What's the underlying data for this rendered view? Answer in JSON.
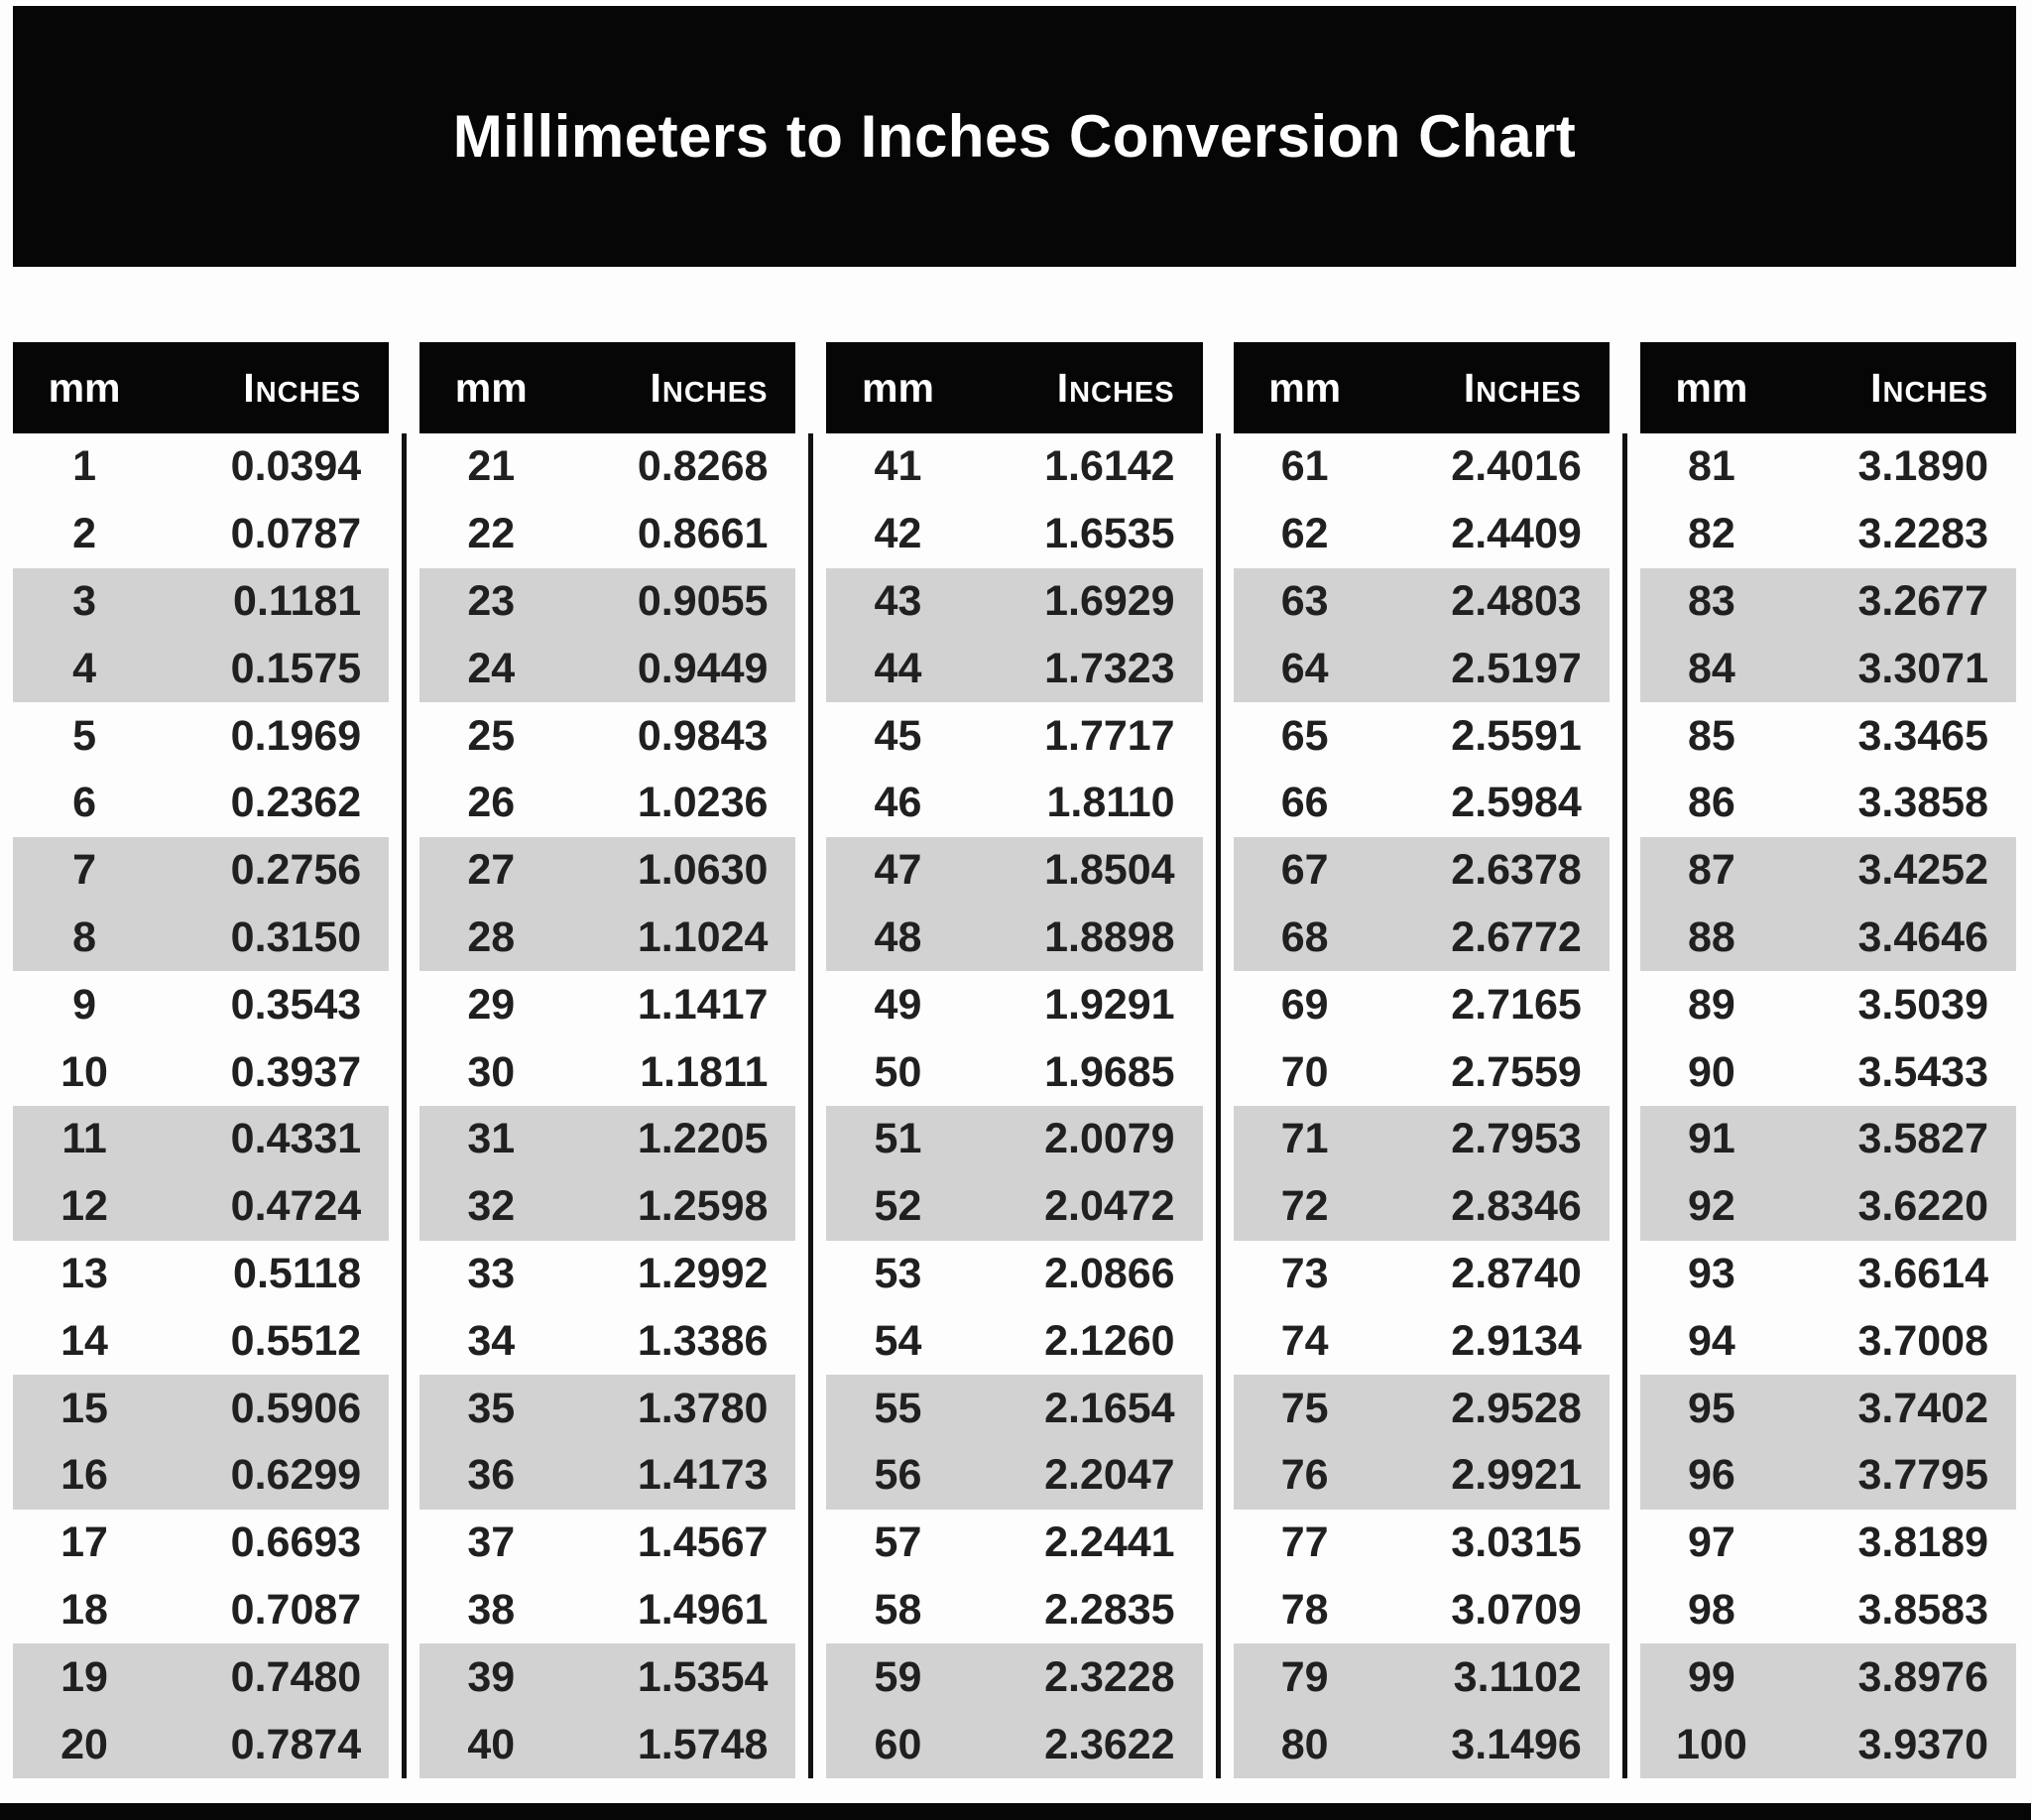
{
  "title": "Millimeters to Inches Conversion Chart",
  "col_headers": {
    "mm": "mm",
    "inches": "Inches"
  },
  "colors": {
    "ink": "#060606",
    "row_alt": "#d2d2d2",
    "divider": "#111111",
    "page_bg": "#fdfdfd",
    "header_text": "#ffffff",
    "body_text": "#202020"
  },
  "tables": [
    {
      "mm": [
        "1",
        "2",
        "3",
        "4",
        "5",
        "6",
        "7",
        "8",
        "9",
        "10",
        "11",
        "12",
        "13",
        "14",
        "15",
        "16",
        "17",
        "18",
        "19",
        "20"
      ],
      "in": [
        "0.0394",
        "0.0787",
        "0.1181",
        "0.1575",
        "0.1969",
        "0.2362",
        "0.2756",
        "0.3150",
        "0.3543",
        "0.3937",
        "0.4331",
        "0.4724",
        "0.5118",
        "0.5512",
        "0.5906",
        "0.6299",
        "0.6693",
        "0.7087",
        "0.7480",
        "0.7874"
      ]
    },
    {
      "mm": [
        "21",
        "22",
        "23",
        "24",
        "25",
        "26",
        "27",
        "28",
        "29",
        "30",
        "31",
        "32",
        "33",
        "34",
        "35",
        "36",
        "37",
        "38",
        "39",
        "40"
      ],
      "in": [
        "0.8268",
        "0.8661",
        "0.9055",
        "0.9449",
        "0.9843",
        "1.0236",
        "1.0630",
        "1.1024",
        "1.1417",
        "1.1811",
        "1.2205",
        "1.2598",
        "1.2992",
        "1.3386",
        "1.3780",
        "1.4173",
        "1.4567",
        "1.4961",
        "1.5354",
        "1.5748"
      ]
    },
    {
      "mm": [
        "41",
        "42",
        "43",
        "44",
        "45",
        "46",
        "47",
        "48",
        "49",
        "50",
        "51",
        "52",
        "53",
        "54",
        "55",
        "56",
        "57",
        "58",
        "59",
        "60"
      ],
      "in": [
        "1.6142",
        "1.6535",
        "1.6929",
        "1.7323",
        "1.7717",
        "1.8110",
        "1.8504",
        "1.8898",
        "1.9291",
        "1.9685",
        "2.0079",
        "2.0472",
        "2.0866",
        "2.1260",
        "2.1654",
        "2.2047",
        "2.2441",
        "2.2835",
        "2.3228",
        "2.3622"
      ]
    },
    {
      "mm": [
        "61",
        "62",
        "63",
        "64",
        "65",
        "66",
        "67",
        "68",
        "69",
        "70",
        "71",
        "72",
        "73",
        "74",
        "75",
        "76",
        "77",
        "78",
        "79",
        "80"
      ],
      "in": [
        "2.4016",
        "2.4409",
        "2.4803",
        "2.5197",
        "2.5591",
        "2.5984",
        "2.6378",
        "2.6772",
        "2.7165",
        "2.7559",
        "2.7953",
        "2.8346",
        "2.8740",
        "2.9134",
        "2.9528",
        "2.9921",
        "3.0315",
        "3.0709",
        "3.1102",
        "3.1496"
      ]
    },
    {
      "mm": [
        "81",
        "82",
        "83",
        "84",
        "85",
        "86",
        "87",
        "88",
        "89",
        "90",
        "91",
        "92",
        "93",
        "94",
        "95",
        "96",
        "97",
        "98",
        "99",
        "100"
      ],
      "in": [
        "3.1890",
        "3.2283",
        "3.2677",
        "3.3071",
        "3.3465",
        "3.3858",
        "3.4252",
        "3.4646",
        "3.5039",
        "3.5433",
        "3.5827",
        "3.6220",
        "3.6614",
        "3.7008",
        "3.7402",
        "3.7795",
        "3.8189",
        "3.8583",
        "3.8976",
        "3.9370"
      ]
    }
  ]
}
